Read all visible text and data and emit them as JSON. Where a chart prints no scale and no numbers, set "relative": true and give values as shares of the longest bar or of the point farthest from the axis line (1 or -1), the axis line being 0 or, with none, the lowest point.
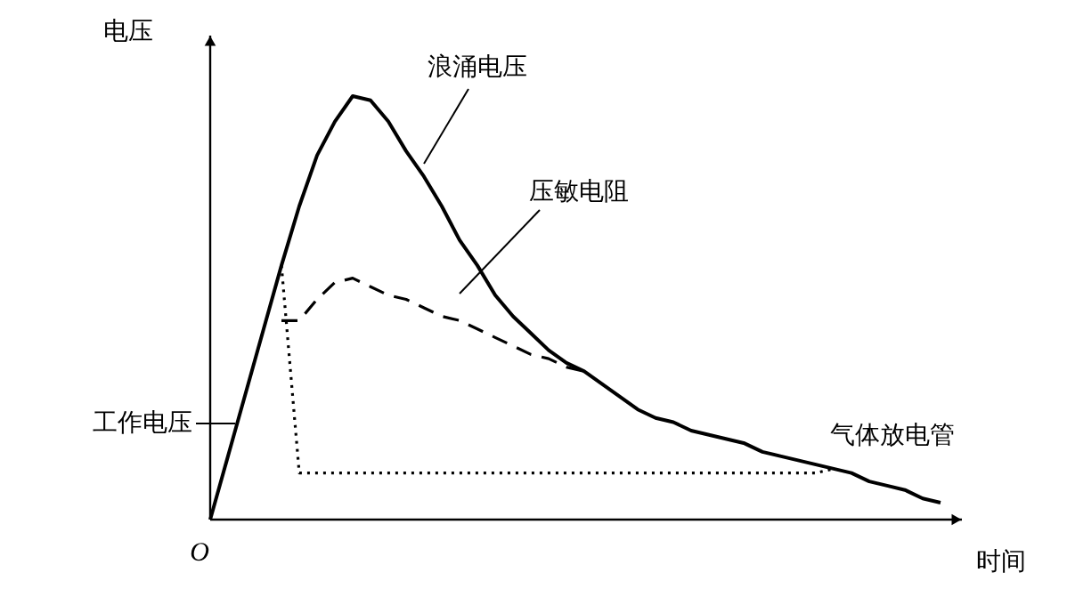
{
  "chart_data": {
    "type": "line",
    "relative": true,
    "xlabel": "时间",
    "ylabel": "电压",
    "categories": [
      null,
      null,
      null,
      null,
      null,
      null,
      null,
      null,
      null,
      null,
      null,
      null,
      null,
      null,
      null,
      null,
      null,
      null,
      null,
      null,
      null,
      null,
      null,
      null,
      null,
      null,
      null,
      null,
      null,
      null,
      null,
      null,
      null,
      null,
      null,
      null,
      null,
      null,
      null,
      null,
      null,
      null
    ],
    "series": [
      {
        "name": "浪涌电压",
        "color": "#000000",
        "line_style": "solid",
        "values": [
          0,
          0.15,
          0.3,
          0.45,
          0.6,
          0.74,
          0.86,
          0.94,
          1,
          0.99,
          0.94,
          0.87,
          0.81,
          0.74,
          0.66,
          0.6,
          0.53,
          0.48,
          0.44,
          0.4,
          0.37,
          0.35,
          0.32,
          0.29,
          0.26,
          0.24,
          0.23,
          0.21,
          0.2,
          0.19,
          0.18,
          0.16,
          0.15,
          0.14,
          0.13,
          0.12,
          0.11,
          0.09,
          0.08,
          0.07,
          0.05,
          0.04
        ]
      },
      {
        "name": "压敏电阻",
        "color": "#000000",
        "line_style": "dashed",
        "values": [
          null,
          null,
          null,
          null,
          0.47,
          0.47,
          0.52,
          0.56,
          0.57,
          0.55,
          0.53,
          0.52,
          0.5,
          0.48,
          0.47,
          0.45,
          0.43,
          0.41,
          0.39,
          0.38,
          0.36,
          0.35,
          null,
          null,
          null,
          null,
          null,
          null,
          null,
          null,
          null,
          null,
          null,
          null,
          null,
          null,
          null,
          null,
          null,
          null,
          null,
          null
        ]
      },
      {
        "name": "气体放电管",
        "color": "#000000",
        "line_style": "dotted",
        "values": [
          null,
          null,
          null,
          null,
          0.6,
          0.11,
          0.11,
          0.11,
          0.11,
          0.11,
          0.11,
          0.11,
          0.11,
          0.11,
          0.11,
          0.11,
          0.11,
          0.11,
          0.11,
          0.11,
          0.11,
          0.11,
          0.11,
          0.11,
          0.11,
          0.11,
          0.11,
          0.11,
          0.11,
          0.11,
          0.11,
          0.11,
          0.11,
          0.11,
          0.11,
          0.12,
          null,
          null,
          null,
          null,
          null,
          null
        ]
      }
    ],
    "annotations": [
      "O",
      "工作电压"
    ]
  }
}
